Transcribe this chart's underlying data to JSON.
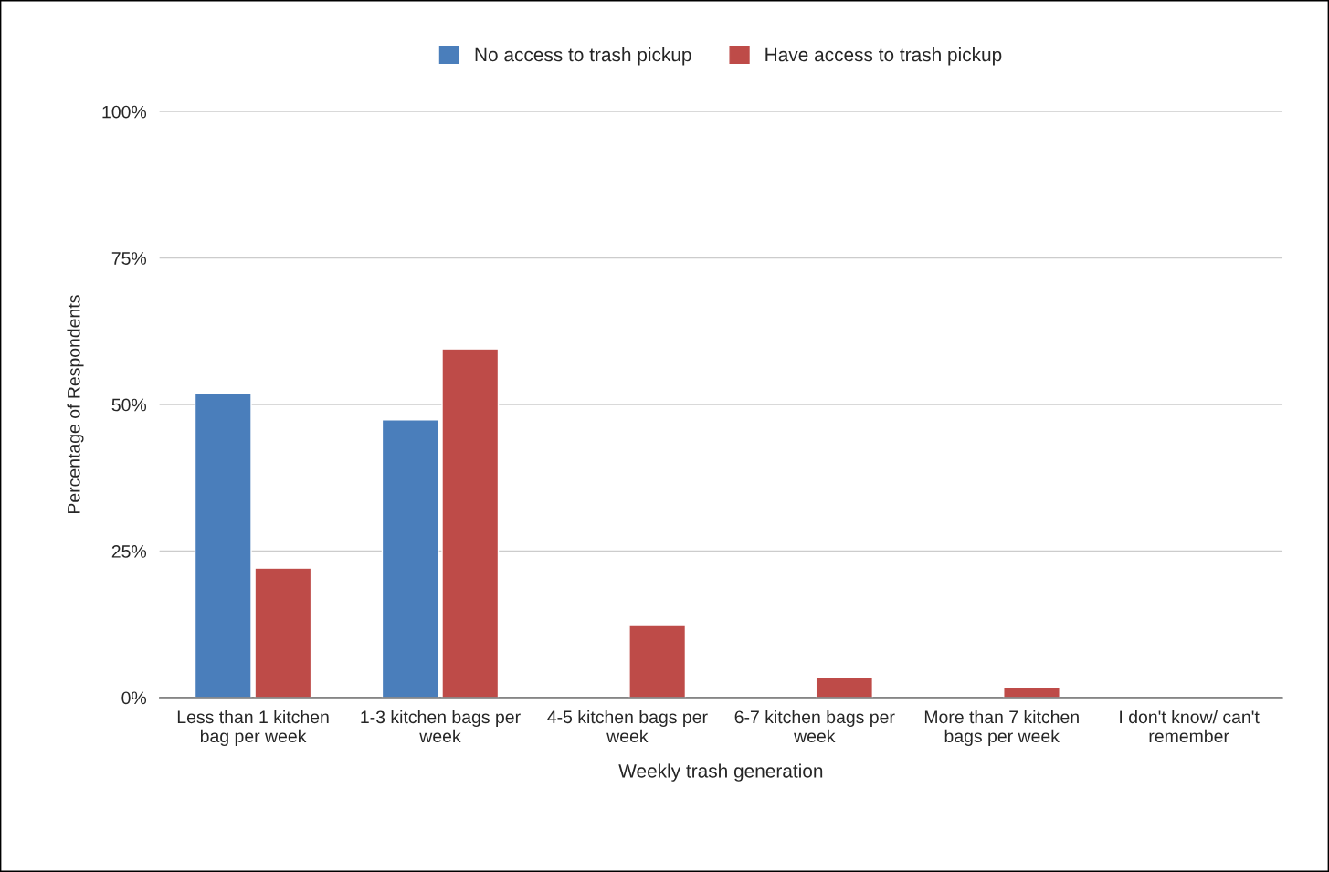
{
  "chart_data": {
    "type": "bar",
    "categories": [
      "Less than 1 kitchen bag per week",
      "1-3 kitchen bags per week",
      "4-5 kitchen bags per week",
      "6-7 kitchen bags per week",
      "More than 7 kitchen bags per week",
      "I don't know/ can't remember"
    ],
    "series": [
      {
        "name": "No access to trash pickup",
        "color": "#4a7ebb",
        "values": [
          52.0,
          47.4,
          null,
          null,
          null,
          null
        ]
      },
      {
        "name": "Have access to trash pickup",
        "color": "#be4b48",
        "values": [
          22.1,
          59.5,
          12.3,
          3.4,
          1.7,
          null
        ]
      }
    ],
    "xlabel": "Weekly trash generation",
    "ylabel": "Percentage of Respondents",
    "ylim": [
      0,
      100
    ],
    "yticks": [
      {
        "value": 0,
        "label": "0%"
      },
      {
        "value": 25,
        "label": "25%"
      },
      {
        "value": 50,
        "label": "50%"
      },
      {
        "value": 75,
        "label": "75%"
      },
      {
        "value": 100,
        "label": "100%"
      }
    ],
    "grid": "y",
    "legend": "top"
  }
}
